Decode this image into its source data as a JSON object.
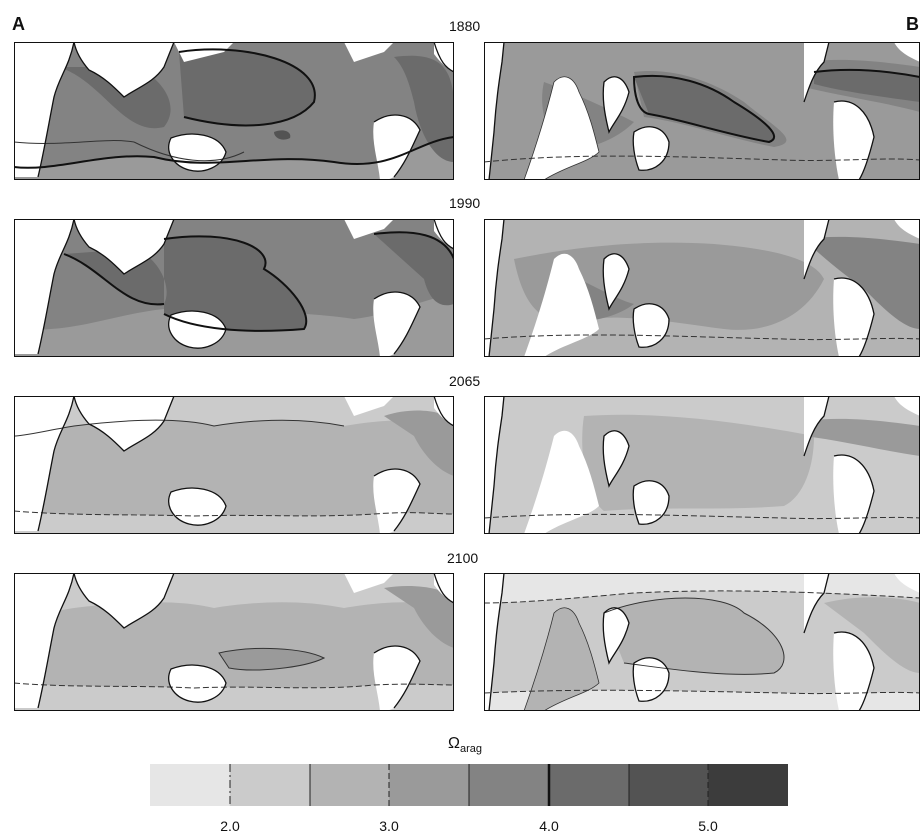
{
  "panel_labels": {
    "a": "A",
    "b": "B"
  },
  "years": [
    "1880",
    "1990",
    "2065",
    "2100"
  ],
  "colorbar": {
    "symbol": "Ω",
    "subscript": "arag",
    "tick_labels": [
      "2.0",
      "3.0",
      "4.0",
      "5.0"
    ],
    "class_colors": [
      "#e6e6e6",
      "#cbcbcb",
      "#b3b3b3",
      "#9a9a9a",
      "#838383",
      "#6b6b6b",
      "#535353",
      "#3c3c3c"
    ]
  },
  "colors": {
    "land": "#ffffff",
    "coast": "#111111"
  }
}
